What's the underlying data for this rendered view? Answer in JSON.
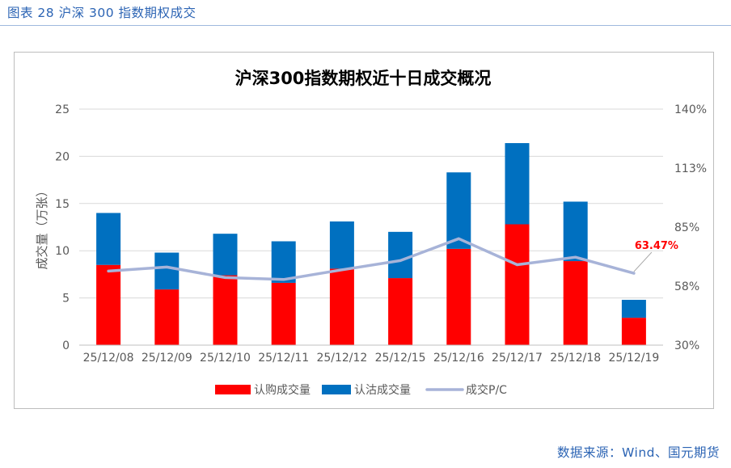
{
  "caption": "图表 28 沪深 300 指数期权成交",
  "source": "数据来源：Wind、国元期货",
  "chart_data": {
    "type": "bar",
    "title": "沪深300指数期权近十日成交概况",
    "ylabel": "成交量（万张）",
    "y2label": "",
    "categories": [
      "25/12/08",
      "25/12/09",
      "25/12/10",
      "25/12/11",
      "25/12/12",
      "25/12/15",
      "25/12/16",
      "25/12/17",
      "25/12/18",
      "25/12/19"
    ],
    "ylim": [
      0,
      25
    ],
    "yticks": [
      "0",
      "5",
      "10",
      "15",
      "20",
      "25"
    ],
    "y2lim": [
      0.3,
      1.4
    ],
    "y2ticks": [
      "30%",
      "58%",
      "85%",
      "113%",
      "140%"
    ],
    "stacked": true,
    "series": [
      {
        "name": "认购成交量",
        "kind": "bar",
        "axis": "left",
        "color": "#ff0000",
        "values": [
          8.5,
          5.9,
          7.4,
          6.6,
          8.1,
          7.1,
          10.2,
          12.8,
          8.9,
          2.9
        ]
      },
      {
        "name": "认沽成交量",
        "kind": "bar",
        "axis": "left",
        "color": "#0070c0",
        "values": [
          5.5,
          3.9,
          4.4,
          4.4,
          5.0,
          4.9,
          8.1,
          8.6,
          6.3,
          1.9
        ]
      },
      {
        "name": "成交P/C",
        "kind": "line",
        "axis": "right",
        "color": "#a7b3d8",
        "values": [
          0.645,
          0.664,
          0.615,
          0.606,
          0.651,
          0.694,
          0.796,
          0.675,
          0.71,
          0.635
        ]
      }
    ],
    "annotation": {
      "category_index": 9,
      "text": "63.47%",
      "color": "#ff0000"
    },
    "legend_position": "bottom",
    "grid": true
  }
}
